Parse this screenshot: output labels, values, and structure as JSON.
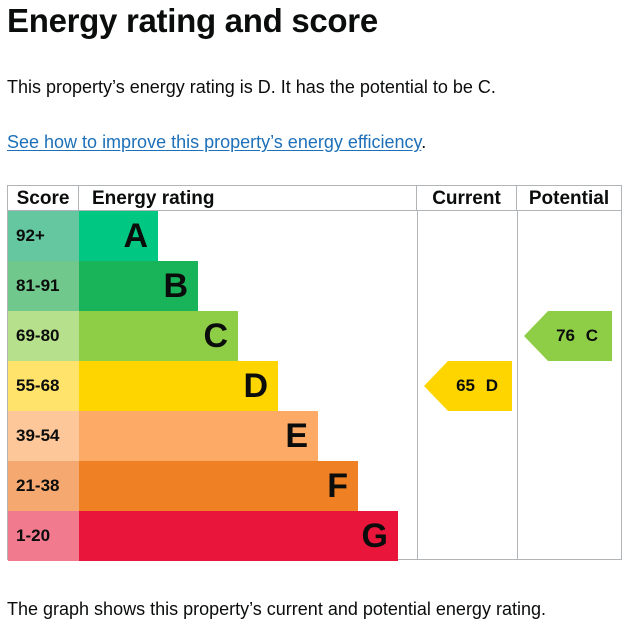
{
  "page": {
    "title": "Energy rating and score",
    "summary": "This property’s energy rating is D. It has the potential to be C.",
    "improve_link": "See how to improve this property’s energy efficiency",
    "improve_link_suffix": ".",
    "caption": "The graph shows this property’s current and potential energy rating."
  },
  "graph": {
    "headers": {
      "score": "Score",
      "rating": "Energy rating",
      "current": "Current",
      "potential": "Potential"
    },
    "bands": [
      {
        "score": "92+",
        "letter": "A",
        "color": "#00c781",
        "score_bg": "#64c7a0"
      },
      {
        "score": "81-91",
        "letter": "B",
        "color": "#19b459",
        "score_bg": "#70c88c"
      },
      {
        "score": "69-80",
        "letter": "C",
        "color": "#8dce46",
        "score_bg": "#b6e08c"
      },
      {
        "score": "55-68",
        "letter": "D",
        "color": "#ffd500",
        "score_bg": "#ffe36a"
      },
      {
        "score": "39-54",
        "letter": "E",
        "color": "#fcaa65",
        "score_bg": "#fdc79a"
      },
      {
        "score": "21-38",
        "letter": "F",
        "color": "#ef8023",
        "score_bg": "#f5a870"
      },
      {
        "score": "1-20",
        "letter": "G",
        "color": "#e9153b",
        "score_bg": "#f17a8e"
      }
    ],
    "current": {
      "value": "65",
      "letter": "D",
      "color": "#ffd500"
    },
    "potential": {
      "value": "76",
      "letter": "C",
      "color": "#8dce46"
    }
  }
}
